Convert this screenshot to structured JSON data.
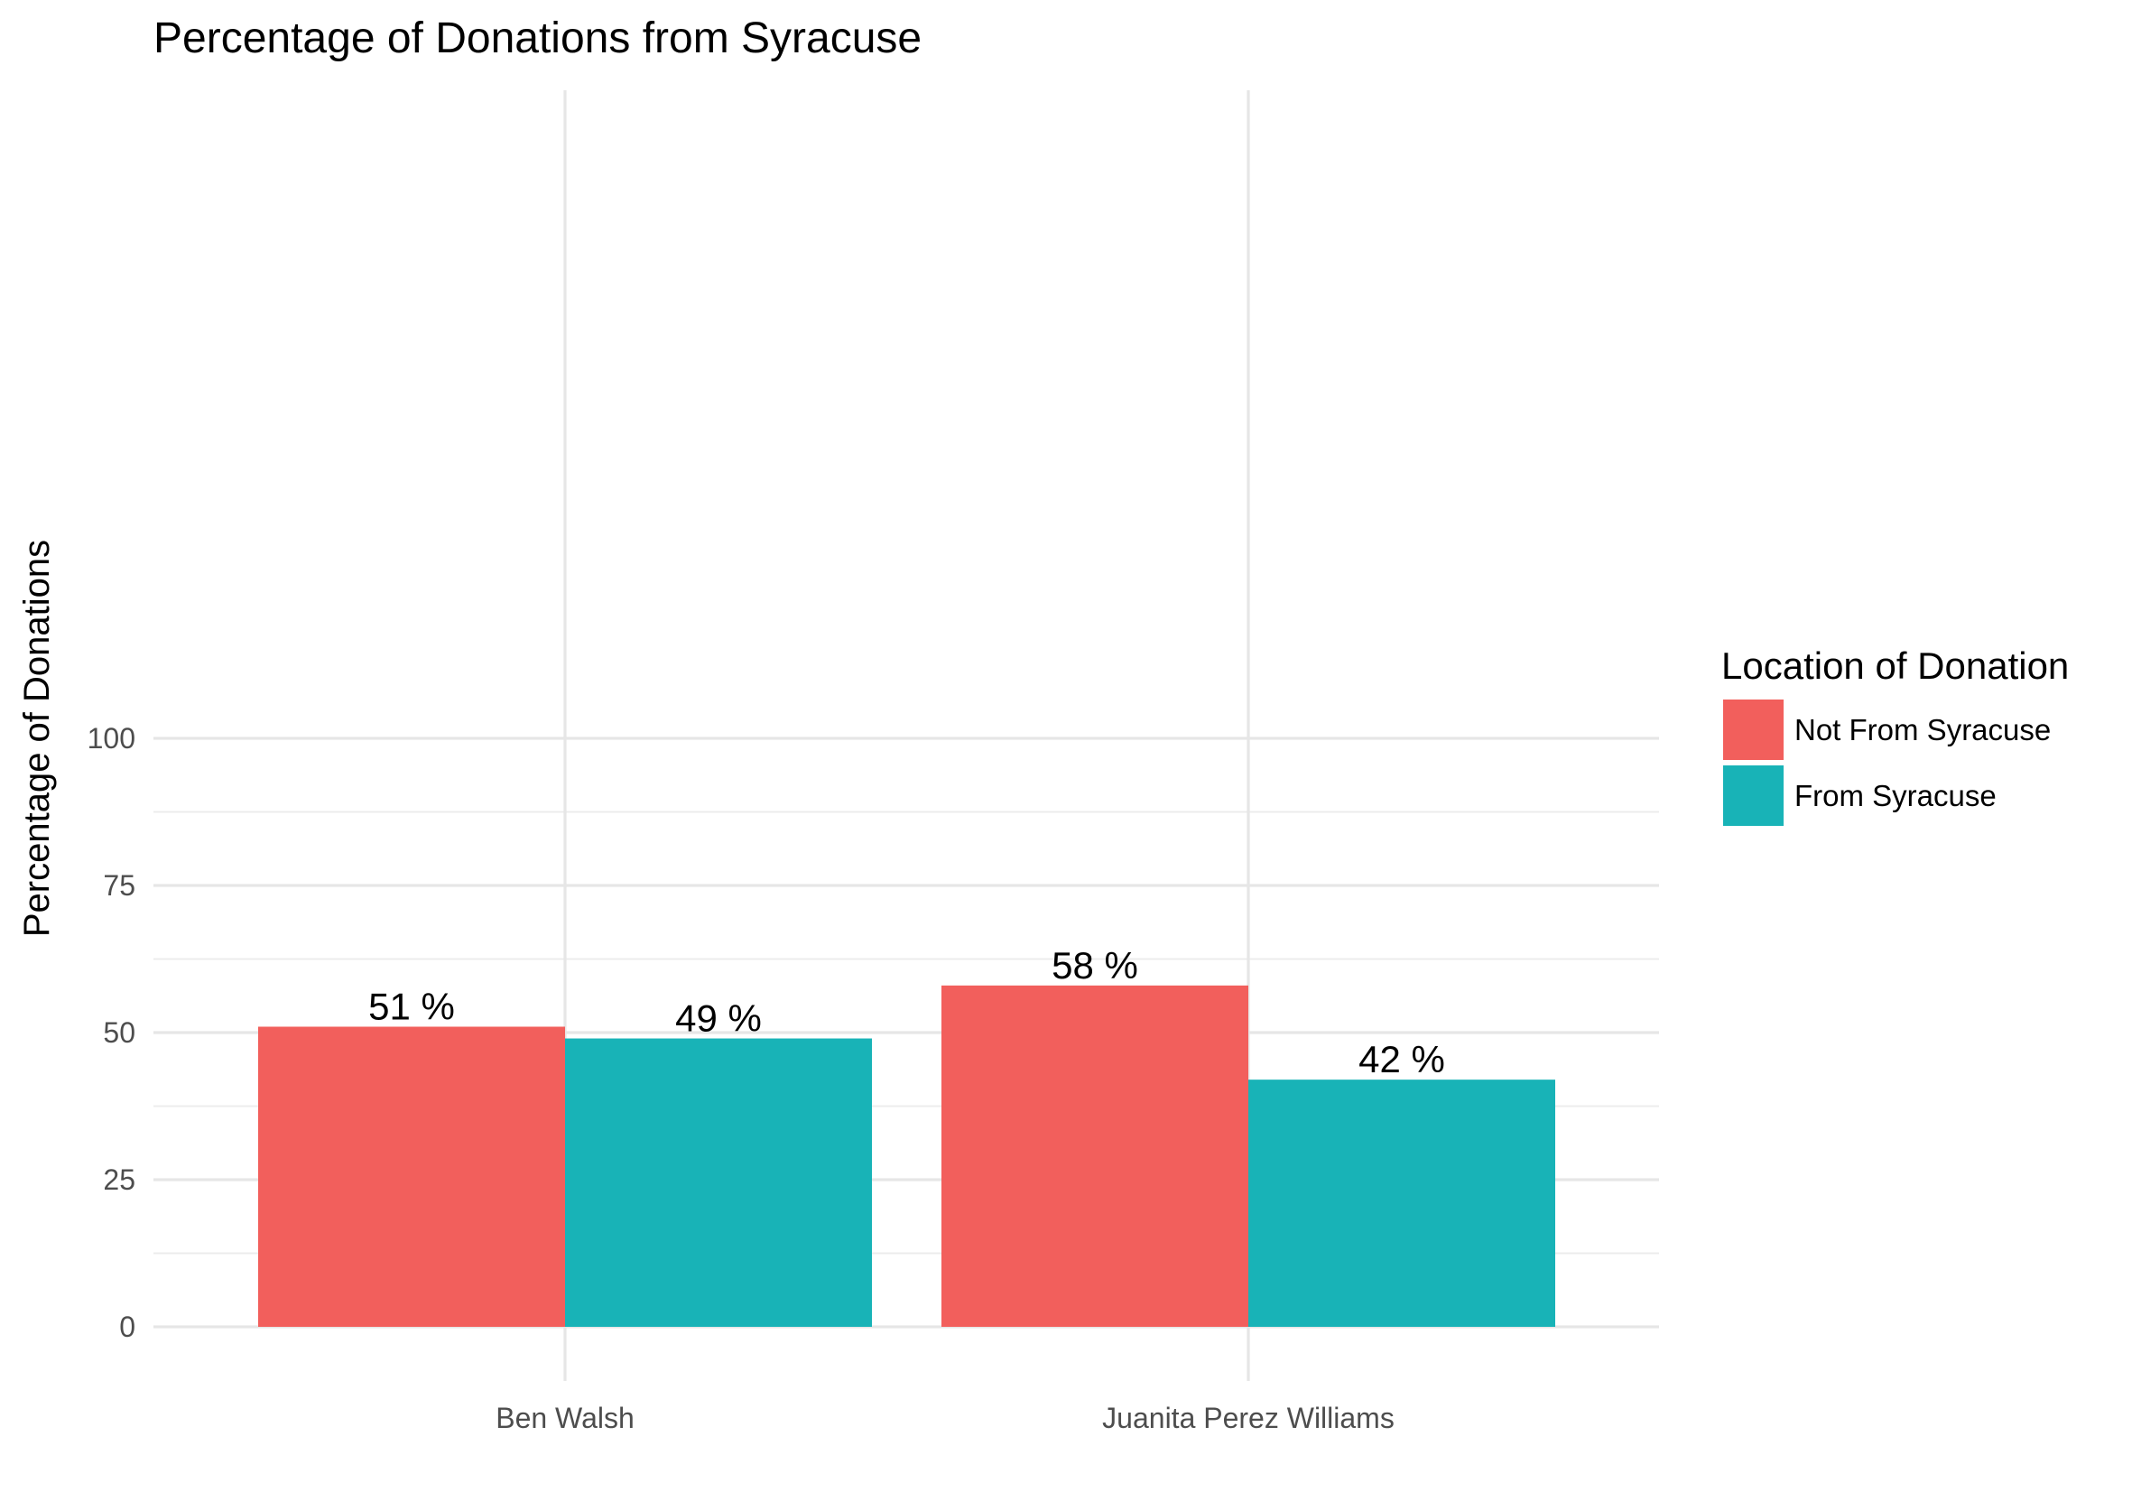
{
  "colors": {
    "not_from_syracuse": "#F25F5C",
    "from_syracuse": "#18B3B7"
  },
  "chart_data": {
    "type": "bar",
    "title": "Percentage of Donations from Syracuse",
    "xlabel": "",
    "ylabel": "Percentage of Donations",
    "categories": [
      "Ben Walsh",
      "Juanita Perez Williams"
    ],
    "series": [
      {
        "name": "Not From Syracuse",
        "values": [
          51,
          58
        ],
        "labels": [
          "51 %",
          "58 %"
        ]
      },
      {
        "name": "From Syracuse",
        "values": [
          49,
          42
        ],
        "labels": [
          "49 %",
          "42 %"
        ]
      }
    ],
    "ylim": [
      0,
      100
    ],
    "yticks": [
      0,
      25,
      50,
      75,
      100
    ],
    "grid": true,
    "legend": {
      "title": "Location of Donation",
      "position": "right"
    }
  }
}
